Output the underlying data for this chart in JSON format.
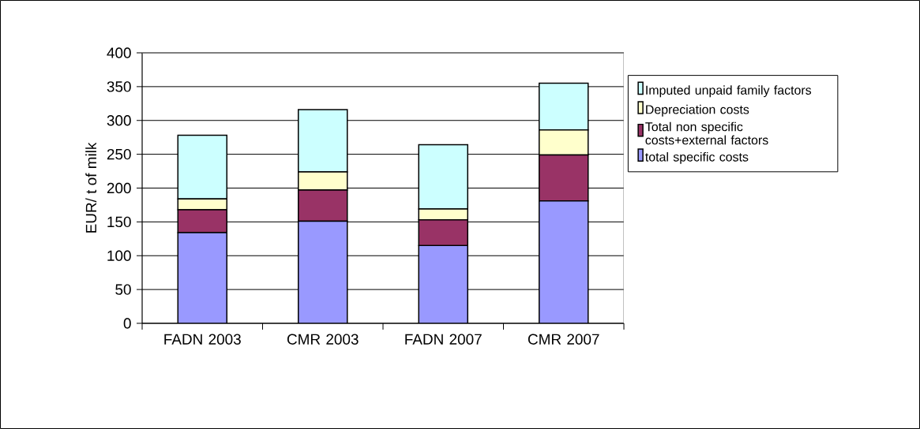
{
  "chart_data": {
    "type": "bar",
    "stacked": true,
    "ylabel": "EUR/ t of milk",
    "categories": [
      "FADN 2003",
      "CMR 2003",
      "FADN 2007",
      "CMR 2007"
    ],
    "series": [
      {
        "name": "total specific costs",
        "color": "#9999ff",
        "values": [
          134,
          151,
          115,
          181
        ]
      },
      {
        "name": "Total non specific costs+external factors",
        "color": "#993366",
        "values": [
          34,
          46,
          38,
          68
        ]
      },
      {
        "name": "Depreciation costs",
        "color": "#ffffcc",
        "values": [
          16,
          27,
          16,
          37
        ]
      },
      {
        "name": "Imputed unpaid family factors",
        "color": "#ccffff",
        "values": [
          94,
          92,
          95,
          69
        ]
      }
    ],
    "ylim": [
      0,
      400
    ],
    "yticks": [
      0,
      50,
      100,
      150,
      200,
      250,
      300,
      350,
      400
    ],
    "grid": "y",
    "legend": "right"
  }
}
